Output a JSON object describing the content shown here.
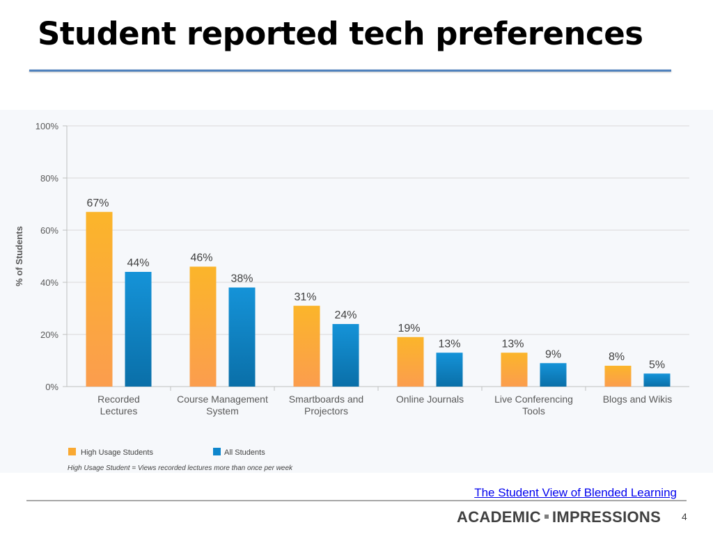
{
  "slide": {
    "title": "Student reported tech preferences",
    "source_link": "The Student View of Blended Learning",
    "brand_left": "ACADEMIC",
    "brand_right": "IMPRESSIONS",
    "page_number": "4"
  },
  "colors": {
    "high_usage": "#f9a932",
    "all_students": "#0e86cc",
    "grid": "#d9d9d9",
    "axis_text": "#595959"
  },
  "chart_data": {
    "type": "bar",
    "title": "",
    "xlabel": "",
    "ylabel": "% of Students",
    "ylim": [
      0,
      100
    ],
    "yticks": [
      0,
      20,
      40,
      60,
      80,
      100
    ],
    "ytick_labels": [
      "0%",
      "20%",
      "40%",
      "60%",
      "80%",
      "100%"
    ],
    "grid": true,
    "legend_position": "bottom-left",
    "categories": [
      [
        "Recorded",
        "Lectures"
      ],
      [
        "Course Management",
        "System"
      ],
      [
        "Smartboards and",
        "Projectors"
      ],
      [
        "Online Journals"
      ],
      [
        "Live Conferencing",
        "Tools"
      ],
      [
        "Blogs and Wikis"
      ]
    ],
    "series": [
      {
        "name": "High Usage Students",
        "values": [
          67,
          46,
          31,
          19,
          13,
          8
        ],
        "labels": [
          "67%",
          "46%",
          "31%",
          "19%",
          "13%",
          "8%"
        ]
      },
      {
        "name": "All Students",
        "values": [
          44,
          38,
          24,
          13,
          9,
          5
        ],
        "labels": [
          "44%",
          "38%",
          "24%",
          "13%",
          "9%",
          "5%"
        ]
      }
    ],
    "footnote": "High Usage Student = Views recorded lectures more than once per week"
  }
}
